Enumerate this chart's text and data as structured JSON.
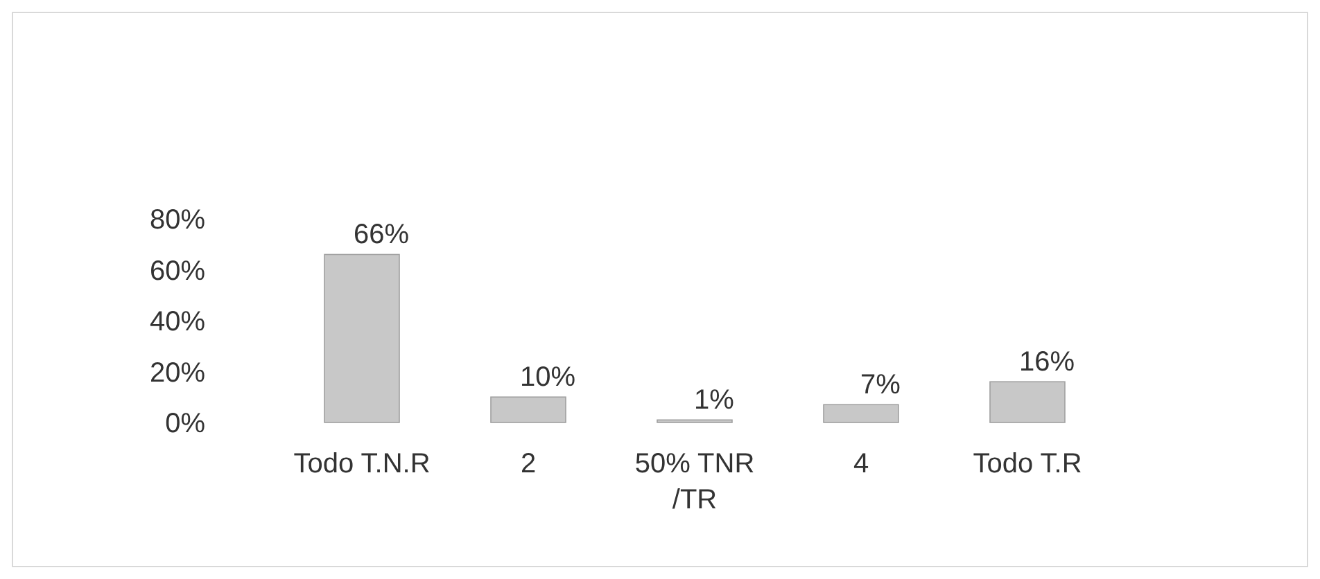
{
  "chart_data": {
    "type": "bar",
    "categories": [
      "Todo T.N.R",
      "2",
      "50% TNR /TR",
      "4",
      "Todo T.R"
    ],
    "values": [
      66,
      10,
      1,
      7,
      16
    ],
    "value_labels": [
      "66%",
      "10%",
      "1%",
      "7%",
      "16%"
    ],
    "color": "#c8c8c8",
    "ylim": [
      0,
      80
    ],
    "yticks": [
      {
        "value": 0,
        "label": "0%"
      },
      {
        "value": 20,
        "label": "20%"
      },
      {
        "value": 40,
        "label": "40%"
      },
      {
        "value": 60,
        "label": "60%"
      },
      {
        "value": 80,
        "label": "80%"
      }
    ],
    "grid": false
  }
}
